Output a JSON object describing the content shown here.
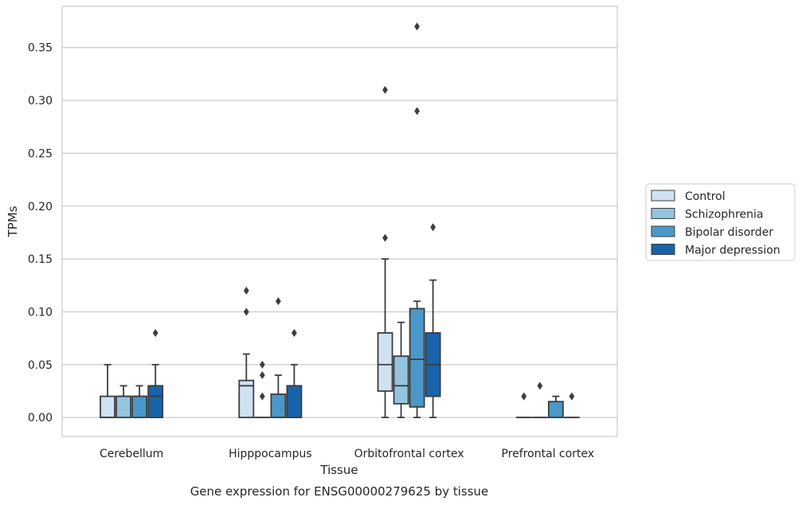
{
  "chart_data": {
    "type": "box",
    "title": "Gene expression for ENSG00000279625 by tissue",
    "xlabel": "Tissue",
    "ylabel": "TPMs",
    "ylim": [
      -0.018,
      0.389
    ],
    "yticks": [
      0.0,
      0.05,
      0.1,
      0.15,
      0.2,
      0.25,
      0.3,
      0.35
    ],
    "ytick_labels": [
      "0.00",
      "0.05",
      "0.10",
      "0.15",
      "0.20",
      "0.25",
      "0.30",
      "0.35"
    ],
    "grid": "horizontal",
    "legend_position": "right-center",
    "categories": [
      "Cerebellum",
      "Hipppocampus",
      "Orbitofrontal cortex",
      "Prefrontal cortex"
    ],
    "series": [
      {
        "name": "Control",
        "color": "#d0e1f2",
        "boxes": [
          {
            "q1": 0.0,
            "median": 0.0,
            "q3": 0.02,
            "whisker_low": 0.0,
            "whisker_high": 0.05,
            "outliers": []
          },
          {
            "q1": 0.0,
            "median": 0.03,
            "q3": 0.035,
            "whisker_low": 0.0,
            "whisker_high": 0.06,
            "outliers": [
              0.12,
              0.1
            ]
          },
          {
            "q1": 0.025,
            "median": 0.05,
            "q3": 0.08,
            "whisker_low": 0.0,
            "whisker_high": 0.15,
            "outliers": [
              0.31,
              0.17
            ]
          },
          {
            "q1": 0.0,
            "median": 0.0,
            "q3": 0.0,
            "whisker_low": 0.0,
            "whisker_high": 0.0,
            "outliers": [
              0.02
            ]
          }
        ]
      },
      {
        "name": "Schizophrenia",
        "color": "#94c4df",
        "boxes": [
          {
            "q1": 0.0,
            "median": 0.02,
            "q3": 0.02,
            "whisker_low": 0.0,
            "whisker_high": 0.03,
            "outliers": []
          },
          {
            "q1": 0.0,
            "median": 0.0,
            "q3": 0.0,
            "whisker_low": 0.0,
            "whisker_high": 0.0,
            "outliers": [
              0.05,
              0.04,
              0.02
            ]
          },
          {
            "q1": 0.013,
            "median": 0.03,
            "q3": 0.058,
            "whisker_low": 0.0,
            "whisker_high": 0.09,
            "outliers": []
          },
          {
            "q1": 0.0,
            "median": 0.0,
            "q3": 0.0,
            "whisker_low": 0.0,
            "whisker_high": 0.0,
            "outliers": [
              0.03
            ]
          }
        ]
      },
      {
        "name": "Bipolar disorder",
        "color": "#4a98c9",
        "boxes": [
          {
            "q1": 0.0,
            "median": 0.02,
            "q3": 0.02,
            "whisker_low": 0.0,
            "whisker_high": 0.03,
            "outliers": []
          },
          {
            "q1": 0.0,
            "median": 0.0,
            "q3": 0.022,
            "whisker_low": 0.0,
            "whisker_high": 0.04,
            "outliers": [
              0.11
            ]
          },
          {
            "q1": 0.01,
            "median": 0.055,
            "q3": 0.103,
            "whisker_low": 0.0,
            "whisker_high": 0.11,
            "outliers": [
              0.37,
              0.29
            ]
          },
          {
            "q1": 0.0,
            "median": 0.0,
            "q3": 0.015,
            "whisker_low": 0.0,
            "whisker_high": 0.02,
            "outliers": []
          }
        ]
      },
      {
        "name": "Major depression",
        "color": "#1764ab",
        "boxes": [
          {
            "q1": 0.0,
            "median": 0.02,
            "q3": 0.03,
            "whisker_low": 0.0,
            "whisker_high": 0.05,
            "outliers": [
              0.08
            ]
          },
          {
            "q1": 0.0,
            "median": 0.0,
            "q3": 0.03,
            "whisker_low": 0.0,
            "whisker_high": 0.05,
            "outliers": [
              0.08
            ]
          },
          {
            "q1": 0.02,
            "median": 0.05,
            "q3": 0.08,
            "whisker_low": 0.0,
            "whisker_high": 0.13,
            "outliers": [
              0.18
            ]
          },
          {
            "q1": 0.0,
            "median": 0.0,
            "q3": 0.0,
            "whisker_low": 0.0,
            "whisker_high": 0.0,
            "outliers": [
              0.02
            ]
          }
        ]
      }
    ]
  }
}
